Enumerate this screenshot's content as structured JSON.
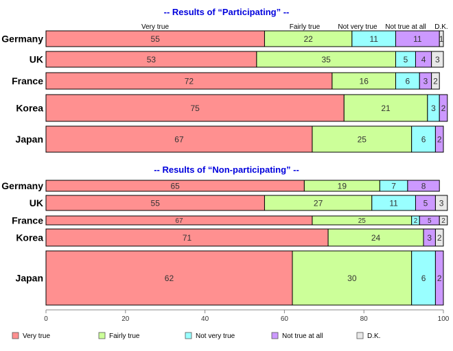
{
  "chart_data": {
    "type": "bar",
    "stacked": true,
    "orientation": "horizontal",
    "xlim": [
      0,
      100
    ],
    "x_ticks": [
      "0",
      "20",
      "40",
      "60",
      "80",
      "100"
    ],
    "categories_legend": [
      "Very true",
      "Fairly true",
      "Not very true",
      "Not true at all",
      "D.K."
    ],
    "colors": [
      "#ff9090",
      "#ccff99",
      "#99ffff",
      "#cc99ff",
      "#e8e8e8"
    ],
    "legend_position": "bottom",
    "panels": [
      {
        "title": "-- Results of “Participating” --",
        "column_headers": [
          "Very true",
          "Fairly true",
          "Not very true",
          "Not true at all",
          "D.K."
        ],
        "rows": [
          {
            "label": "Germany",
            "values": [
              55,
              22,
              11,
              11,
              1
            ]
          },
          {
            "label": "UK",
            "values": [
              53,
              35,
              5,
              4,
              3
            ]
          },
          {
            "label": "France",
            "values": [
              72,
              16,
              6,
              3,
              2
            ]
          },
          {
            "label": "Korea",
            "values": [
              75,
              21,
              3,
              2,
              0
            ]
          },
          {
            "label": "Japan",
            "values": [
              67,
              25,
              6,
              2,
              0
            ]
          }
        ]
      },
      {
        "title": "-- Results of “Non-participating” --",
        "rows": [
          {
            "label": "Germany",
            "values": [
              65,
              19,
              7,
              8,
              0
            ]
          },
          {
            "label": "UK",
            "values": [
              55,
              27,
              11,
              5,
              3
            ]
          },
          {
            "label": "France",
            "values": [
              67,
              25,
              2,
              5,
              2
            ]
          },
          {
            "label": "Korea",
            "values": [
              71,
              24,
              0,
              3,
              2
            ]
          },
          {
            "label": "Japan",
            "values": [
              62,
              30,
              6,
              2,
              0
            ]
          }
        ]
      }
    ]
  }
}
